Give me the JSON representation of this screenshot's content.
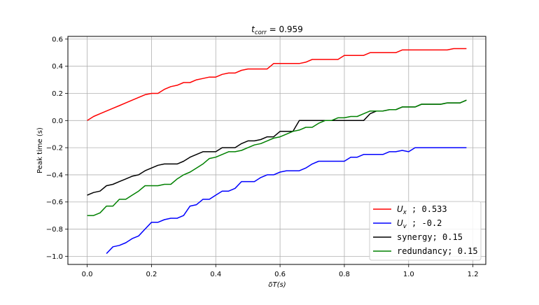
{
  "chart_data": {
    "type": "line",
    "title": "t_corr = 0.959",
    "title_main": "t",
    "title_sub": "corr",
    "title_rest": " = 0.959",
    "xlabel": "δT(s)",
    "ylabel": "Peak time (s)",
    "xlim": [
      -0.06,
      1.24
    ],
    "ylim": [
      -1.06,
      0.62
    ],
    "xticks": [
      0.0,
      0.2,
      0.4,
      0.6,
      0.8,
      1.0,
      1.2
    ],
    "xtick_labels": [
      "0.0",
      "0.2",
      "0.4",
      "0.6",
      "0.8",
      "1.0",
      "1.2"
    ],
    "yticks": [
      0.6,
      0.4,
      0.2,
      0.0,
      -0.2,
      -0.4,
      -0.6,
      -0.8,
      -1.0
    ],
    "ytick_labels": [
      "0.6",
      "0.4",
      "0.2",
      "0.0",
      "−0.2",
      "−0.4",
      "−0.6",
      "−0.8",
      "−1.0"
    ],
    "grid": true,
    "legend_position": "bottom-right",
    "series": [
      {
        "name": "U_x ; 0.533",
        "legend_main": "U",
        "legend_sub": "x",
        "legend_rest": " ; 0.533",
        "color": "#ff0000",
        "x": [
          0.0,
          0.02,
          0.04,
          0.06,
          0.08,
          0.1,
          0.12,
          0.14,
          0.16,
          0.18,
          0.2,
          0.22,
          0.24,
          0.26,
          0.28,
          0.3,
          0.32,
          0.34,
          0.36,
          0.38,
          0.4,
          0.42,
          0.44,
          0.46,
          0.48,
          0.5,
          0.52,
          0.54,
          0.56,
          0.58,
          0.6,
          0.62,
          0.64,
          0.66,
          0.68,
          0.7,
          0.72,
          0.74,
          0.76,
          0.78,
          0.8,
          0.82,
          0.84,
          0.86,
          0.88,
          0.9,
          0.92,
          0.94,
          0.96,
          0.98,
          1.0,
          1.02,
          1.04,
          1.06,
          1.08,
          1.1,
          1.12,
          1.14,
          1.16,
          1.18
        ],
        "y": [
          0.0,
          0.03,
          0.05,
          0.07,
          0.09,
          0.11,
          0.13,
          0.15,
          0.17,
          0.19,
          0.2,
          0.2,
          0.23,
          0.25,
          0.26,
          0.28,
          0.28,
          0.3,
          0.31,
          0.32,
          0.32,
          0.34,
          0.35,
          0.35,
          0.37,
          0.38,
          0.38,
          0.38,
          0.38,
          0.42,
          0.42,
          0.42,
          0.42,
          0.42,
          0.43,
          0.45,
          0.45,
          0.45,
          0.45,
          0.45,
          0.48,
          0.48,
          0.48,
          0.48,
          0.5,
          0.5,
          0.5,
          0.5,
          0.5,
          0.52,
          0.52,
          0.52,
          0.52,
          0.52,
          0.52,
          0.52,
          0.52,
          0.53,
          0.53,
          0.53
        ]
      },
      {
        "name": "U_v ; -0.2",
        "legend_main": "U",
        "legend_sub": "v",
        "legend_rest": " ; -0.2",
        "color": "#0000ff",
        "x": [
          0.06,
          0.08,
          0.1,
          0.12,
          0.14,
          0.16,
          0.18,
          0.2,
          0.22,
          0.24,
          0.26,
          0.28,
          0.3,
          0.32,
          0.34,
          0.36,
          0.38,
          0.4,
          0.42,
          0.44,
          0.46,
          0.48,
          0.5,
          0.52,
          0.54,
          0.56,
          0.58,
          0.6,
          0.62,
          0.64,
          0.66,
          0.68,
          0.7,
          0.72,
          0.74,
          0.76,
          0.78,
          0.8,
          0.82,
          0.84,
          0.86,
          0.88,
          0.9,
          0.92,
          0.94,
          0.96,
          0.98,
          1.0,
          1.02,
          1.04,
          1.06,
          1.08,
          1.1,
          1.12,
          1.14,
          1.16,
          1.18
        ],
        "y": [
          -0.98,
          -0.93,
          -0.92,
          -0.9,
          -0.87,
          -0.85,
          -0.8,
          -0.75,
          -0.75,
          -0.73,
          -0.72,
          -0.72,
          -0.7,
          -0.63,
          -0.62,
          -0.58,
          -0.58,
          -0.55,
          -0.52,
          -0.52,
          -0.5,
          -0.45,
          -0.45,
          -0.45,
          -0.42,
          -0.4,
          -0.4,
          -0.38,
          -0.37,
          -0.37,
          -0.37,
          -0.35,
          -0.32,
          -0.3,
          -0.3,
          -0.3,
          -0.3,
          -0.3,
          -0.27,
          -0.27,
          -0.25,
          -0.25,
          -0.25,
          -0.25,
          -0.23,
          -0.23,
          -0.22,
          -0.23,
          -0.2,
          -0.2,
          -0.2,
          -0.2,
          -0.2,
          -0.2,
          -0.2,
          -0.2,
          -0.2
        ]
      },
      {
        "name": "synergy; 0.15",
        "color": "#000000",
        "x": [
          0.0,
          0.02,
          0.04,
          0.06,
          0.08,
          0.1,
          0.12,
          0.14,
          0.16,
          0.18,
          0.2,
          0.22,
          0.24,
          0.26,
          0.28,
          0.3,
          0.32,
          0.34,
          0.36,
          0.38,
          0.4,
          0.42,
          0.44,
          0.46,
          0.48,
          0.5,
          0.52,
          0.54,
          0.56,
          0.58,
          0.6,
          0.62,
          0.64,
          0.66,
          0.68,
          0.7,
          0.72,
          0.74,
          0.76,
          0.78,
          0.8,
          0.82,
          0.84,
          0.86,
          0.88,
          0.9,
          0.92,
          0.94,
          0.96,
          0.98,
          1.0,
          1.02,
          1.04,
          1.06,
          1.08,
          1.1,
          1.12,
          1.14,
          1.16,
          1.18
        ],
        "y": [
          -0.55,
          -0.53,
          -0.52,
          -0.48,
          -0.47,
          -0.45,
          -0.43,
          -0.41,
          -0.4,
          -0.37,
          -0.35,
          -0.33,
          -0.32,
          -0.32,
          -0.32,
          -0.3,
          -0.27,
          -0.25,
          -0.23,
          -0.23,
          -0.23,
          -0.2,
          -0.2,
          -0.2,
          -0.17,
          -0.15,
          -0.15,
          -0.14,
          -0.12,
          -0.12,
          -0.08,
          -0.08,
          -0.08,
          0.0,
          0.0,
          0.0,
          0.0,
          0.0,
          0.0,
          0.0,
          0.0,
          0.0,
          0.0,
          0.0,
          0.05,
          0.07,
          0.07,
          0.08,
          0.08,
          0.1,
          0.1,
          0.1,
          0.12,
          0.12,
          0.12,
          0.12,
          0.13,
          0.13,
          0.13,
          0.15
        ]
      },
      {
        "name": "redundancy; 0.15",
        "color": "#008000",
        "x": [
          0.0,
          0.02,
          0.04,
          0.06,
          0.08,
          0.1,
          0.12,
          0.14,
          0.16,
          0.18,
          0.2,
          0.22,
          0.24,
          0.26,
          0.28,
          0.3,
          0.32,
          0.34,
          0.36,
          0.38,
          0.4,
          0.42,
          0.44,
          0.46,
          0.48,
          0.5,
          0.52,
          0.54,
          0.56,
          0.58,
          0.6,
          0.62,
          0.64,
          0.66,
          0.68,
          0.7,
          0.72,
          0.74,
          0.76,
          0.78,
          0.8,
          0.82,
          0.84,
          0.86,
          0.88,
          0.9,
          0.92,
          0.94,
          0.96,
          0.98,
          1.0,
          1.02,
          1.04,
          1.06,
          1.08,
          1.1,
          1.12,
          1.14,
          1.16,
          1.18
        ],
        "y": [
          -0.7,
          -0.7,
          -0.68,
          -0.63,
          -0.63,
          -0.58,
          -0.58,
          -0.55,
          -0.52,
          -0.48,
          -0.48,
          -0.48,
          -0.47,
          -0.47,
          -0.43,
          -0.4,
          -0.38,
          -0.35,
          -0.32,
          -0.28,
          -0.27,
          -0.25,
          -0.23,
          -0.23,
          -0.22,
          -0.2,
          -0.18,
          -0.17,
          -0.15,
          -0.13,
          -0.12,
          -0.1,
          -0.08,
          -0.07,
          -0.05,
          -0.05,
          -0.02,
          0.0,
          0.0,
          0.02,
          0.02,
          0.03,
          0.03,
          0.05,
          0.07,
          0.07,
          0.07,
          0.08,
          0.08,
          0.1,
          0.1,
          0.1,
          0.12,
          0.12,
          0.12,
          0.12,
          0.13,
          0.13,
          0.13,
          0.15
        ]
      }
    ]
  }
}
